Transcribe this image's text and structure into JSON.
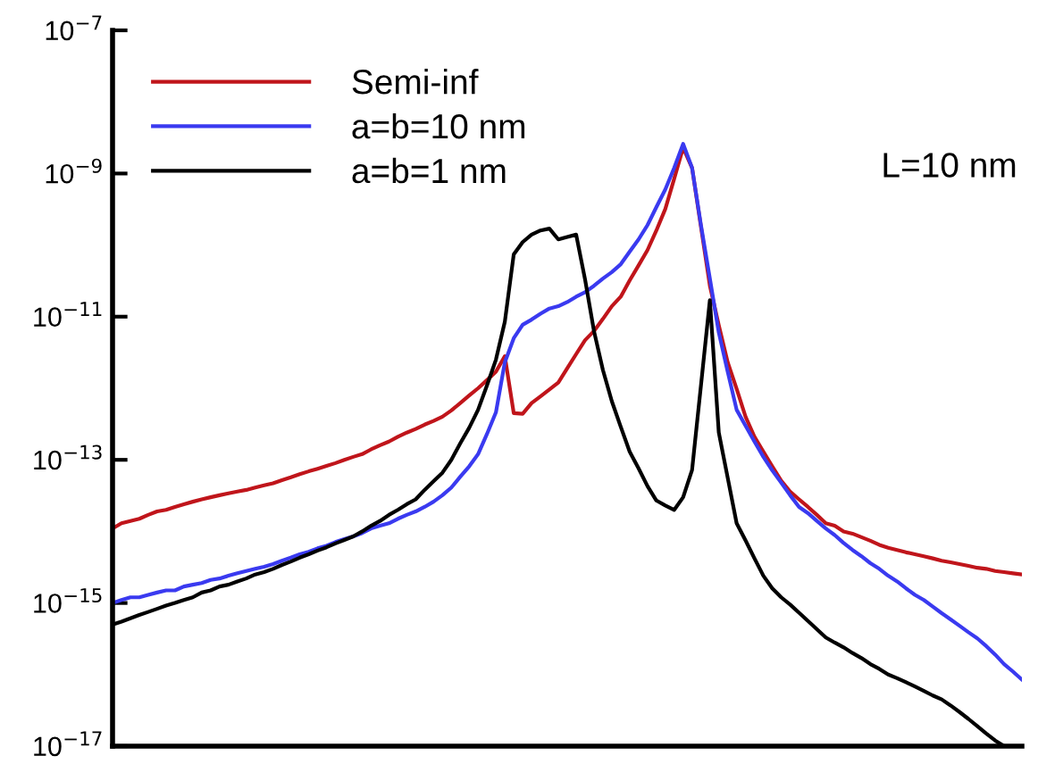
{
  "chart_data": {
    "type": "line",
    "categories": [
      null,
      null,
      null,
      null,
      null,
      null,
      null,
      null,
      null,
      null,
      null,
      null,
      null,
      null,
      null,
      null,
      null,
      null,
      null,
      null,
      null,
      null,
      null,
      null,
      null,
      null,
      null,
      null,
      null,
      null,
      null,
      null,
      null,
      null,
      null,
      null,
      null,
      null,
      null,
      null,
      null,
      null,
      null,
      null,
      null,
      null,
      null,
      null,
      null,
      null,
      null,
      null,
      null,
      null,
      null,
      null,
      null,
      null,
      null,
      null,
      null,
      null,
      null,
      null,
      null,
      null,
      null,
      null,
      null,
      null,
      null,
      null,
      null,
      null,
      null,
      null,
      null,
      null,
      null,
      null,
      null,
      null,
      null,
      null,
      null,
      null,
      null,
      null,
      null,
      null,
      null,
      null,
      null,
      null,
      null,
      null,
      null,
      null,
      null,
      null,
      null,
      null,
      null
    ],
    "series": [
      {
        "name": "Semi-inf",
        "color": "#c0151b",
        "values": [
          1.1e-14,
          1.3e-14,
          1.4e-14,
          1.5e-14,
          1.7e-14,
          1.9e-14,
          2e-14,
          2.2e-14,
          2.4e-14,
          2.6e-14,
          2.8e-14,
          3e-14,
          3.2e-14,
          3.4e-14,
          3.6e-14,
          3.8e-14,
          4.1e-14,
          4.4e-14,
          4.7e-14,
          5.2e-14,
          5.7e-14,
          6.3e-14,
          6.9e-14,
          7.5e-14,
          8.2e-14,
          9e-14,
          1e-13,
          1.1e-13,
          1.2e-13,
          1.4e-13,
          1.6e-13,
          1.8e-13,
          2.1e-13,
          2.4e-13,
          2.7e-13,
          3.1e-13,
          3.5e-13,
          4e-13,
          4.9e-13,
          6.2e-13,
          7.9e-13,
          1e-12,
          1.3e-12,
          1.7e-12,
          2.8e-12,
          4.5e-13,
          4.4e-13,
          6.2e-13,
          7.7e-13,
          9.6e-13,
          1.2e-12,
          1.9e-12,
          3e-12,
          4.7e-12,
          6.3e-12,
          9.3e-12,
          1.4e-11,
          1.9e-11,
          3.2e-11,
          5.2e-11,
          8.5e-11,
          1.6e-10,
          3.2e-10,
          8.5e-10,
          2.3e-09,
          1.2e-09,
          1.8e-10,
          2.7e-11,
          7.6e-12,
          2.3e-12,
          9.8e-13,
          4e-13,
          2.1e-13,
          1.3e-13,
          8.1e-14,
          5.1e-14,
          3.6e-14,
          2.8e-14,
          2.2e-14,
          1.7e-14,
          1.3e-14,
          1.2e-14,
          1e-14,
          9.3e-15,
          8.3e-15,
          7.4e-15,
          6.5e-15,
          5.9e-15,
          5.5e-15,
          5.1e-15,
          4.8e-15,
          4.5e-15,
          4.2e-15,
          3.9e-15,
          3.7e-15,
          3.5e-15,
          3.3e-15,
          3.1e-15,
          3e-15,
          2.8e-15,
          2.7e-15,
          2.6e-15,
          2.5e-15
        ]
      },
      {
        "name": "a=b=10 nm",
        "color": "#3a3af0",
        "values": [
          1e-15,
          1.1e-15,
          1.2e-15,
          1.2e-15,
          1.3e-15,
          1.4e-15,
          1.5e-15,
          1.5e-15,
          1.7e-15,
          1.8e-15,
          1.9e-15,
          2.1e-15,
          2.2e-15,
          2.4e-15,
          2.6e-15,
          2.8e-15,
          3e-15,
          3.2e-15,
          3.5e-15,
          3.9e-15,
          4.3e-15,
          4.8e-15,
          5.2e-15,
          5.8e-15,
          6.3e-15,
          7.1e-15,
          7.8e-15,
          8.5e-15,
          9.5e-15,
          1.1e-14,
          1.2e-14,
          1.3e-14,
          1.5e-14,
          1.7e-14,
          1.9e-14,
          2.2e-14,
          2.6e-14,
          3.2e-14,
          4.1e-14,
          5.8e-14,
          8.1e-14,
          1.2e-13,
          2.3e-13,
          4.6e-13,
          2.3e-12,
          5e-12,
          7.7e-12,
          9.1e-12,
          1.1e-11,
          1.3e-11,
          1.4e-11,
          1.6e-11,
          1.9e-11,
          2.2e-11,
          2.7e-11,
          3.4e-11,
          4.2e-11,
          5.4e-11,
          8.1e-11,
          1.2e-10,
          1.9e-10,
          3.4e-10,
          6e-10,
          1.2e-09,
          2.6e-09,
          1.2e-09,
          1.9e-10,
          3.4e-11,
          6e-12,
          1.7e-12,
          5e-13,
          3e-13,
          1.8e-13,
          1.1e-13,
          7.1e-14,
          4.8e-14,
          3.2e-14,
          2.2e-14,
          1.8e-14,
          1.4e-14,
          1.1e-14,
          8.9e-15,
          6.9e-15,
          5.5e-15,
          4.5e-15,
          3.6e-15,
          3e-15,
          2.4e-15,
          2e-15,
          1.6e-15,
          1.3e-15,
          1.1e-15,
          8.9e-16,
          7.2e-16,
          5.9e-16,
          4.8e-16,
          3.9e-16,
          3.2e-16,
          2.5e-16,
          1.9e-16,
          1.4e-16,
          1.1e-16,
          8.5e-17
        ]
      },
      {
        "name": "a=b=1 nm",
        "color": "#000000",
        "values": [
          5e-16,
          5.5e-16,
          6.1e-16,
          6.8e-16,
          7.5e-16,
          8.3e-16,
          9.2e-16,
          1e-15,
          1.1e-15,
          1.2e-15,
          1.4e-15,
          1.5e-15,
          1.7e-15,
          1.8e-15,
          2e-15,
          2.2e-15,
          2.5e-15,
          2.7e-15,
          3e-15,
          3.4e-15,
          3.8e-15,
          4.3e-15,
          4.8e-15,
          5.4e-15,
          6e-15,
          6.8e-15,
          7.6e-15,
          8.5e-15,
          1e-14,
          1.2e-14,
          1.4e-14,
          1.7e-14,
          2e-14,
          2.4e-14,
          2.8e-14,
          3.8e-14,
          5e-14,
          6.6e-14,
          1e-13,
          1.7e-13,
          2.8e-13,
          5e-13,
          1.1e-12,
          2.5e-12,
          8.5e-12,
          7.4e-11,
          1.1e-10,
          1.4e-10,
          1.6e-10,
          1.7e-10,
          1.2e-10,
          1.3e-10,
          1.4e-10,
          3.3e-11,
          6.3e-12,
          1.8e-12,
          6.6e-13,
          2.9e-13,
          1.3e-13,
          7.6e-14,
          4.3e-14,
          2.7e-14,
          2.3e-14,
          2e-14,
          3e-14,
          7.2e-14,
          1.1e-12,
          1.7e-11,
          2.4e-13,
          5.6e-14,
          1.3e-14,
          7.5e-15,
          4.2e-15,
          2.4e-15,
          1.6e-15,
          1.2e-15,
          9.5e-16,
          7.3e-16,
          5.6e-16,
          4.3e-16,
          3.3e-16,
          2.8e-16,
          2.4e-16,
          2e-16,
          1.7e-16,
          1.4e-16,
          1.2e-16,
          1e-16,
          8.9e-17,
          7.8e-17,
          6.8e-17,
          5.9e-17,
          5.1e-17,
          4.5e-17,
          3.7e-17,
          3e-17,
          2.4e-17,
          1.9e-17,
          1.5e-17,
          1.2e-17,
          1e-17,
          null,
          null
        ]
      }
    ],
    "log": "y",
    "ylim": [
      1e-17,
      1e-07
    ],
    "yticks": [
      {
        "value": 1e-17,
        "label": "10$^{−17}$"
      },
      {
        "value": 1e-15,
        "label": "10$^{−15}$"
      },
      {
        "value": 1e-13,
        "label": "10$^{−13}$"
      },
      {
        "value": 1e-11,
        "label": "10$^{−11}$"
      },
      {
        "value": 1e-09,
        "label": "10$^{−9}$"
      },
      {
        "value": 1e-07,
        "label": "10$^{−7}$"
      }
    ],
    "tick_labels": "y",
    "legend": "top left",
    "grid": false,
    "marker": "none",
    "line_style": "solid",
    "annotations": [
      "L=10 nm"
    ]
  }
}
